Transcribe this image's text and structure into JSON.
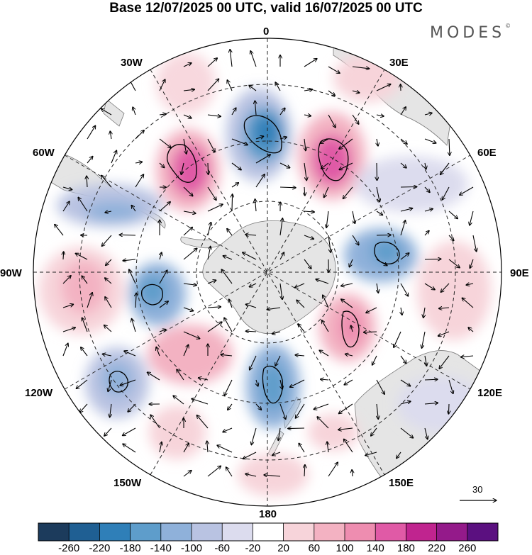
{
  "title": "Base 12/07/2025 00 UTC, valid 16/07/2025 00 UTC",
  "brand": "MODES",
  "brand_mark": "©",
  "map": {
    "projection": "south polar stereographic",
    "longitude_labels": {
      "top": "0",
      "top_right": "30E",
      "right_upper": "60E",
      "right": "90E",
      "right_lower": "120E",
      "bottom_right": "150E",
      "bottom": "180",
      "bottom_left": "150W",
      "left_lower": "120W",
      "left": "90W",
      "left_upper": "60W",
      "top_left": "30W"
    },
    "reference_vector": "30",
    "colors": {
      "land": "#e5e5e5",
      "coast": "#777777",
      "grid": "#222222"
    }
  },
  "colorbar": {
    "labels": [
      "-260",
      "-220",
      "-180",
      "-140",
      "-100",
      "-60",
      "-20",
      "20",
      "60",
      "100",
      "140",
      "180",
      "220",
      "260"
    ],
    "colors": [
      "#1c3b5c",
      "#1f5f93",
      "#2f7fb8",
      "#5e9dcb",
      "#8fb1da",
      "#b9c3e2",
      "#dcdcee",
      "#ffffff",
      "#f7d4da",
      "#f3b2c2",
      "#ee8db0",
      "#e05aa6",
      "#c0248f",
      "#941a8a",
      "#5b1080"
    ]
  }
}
